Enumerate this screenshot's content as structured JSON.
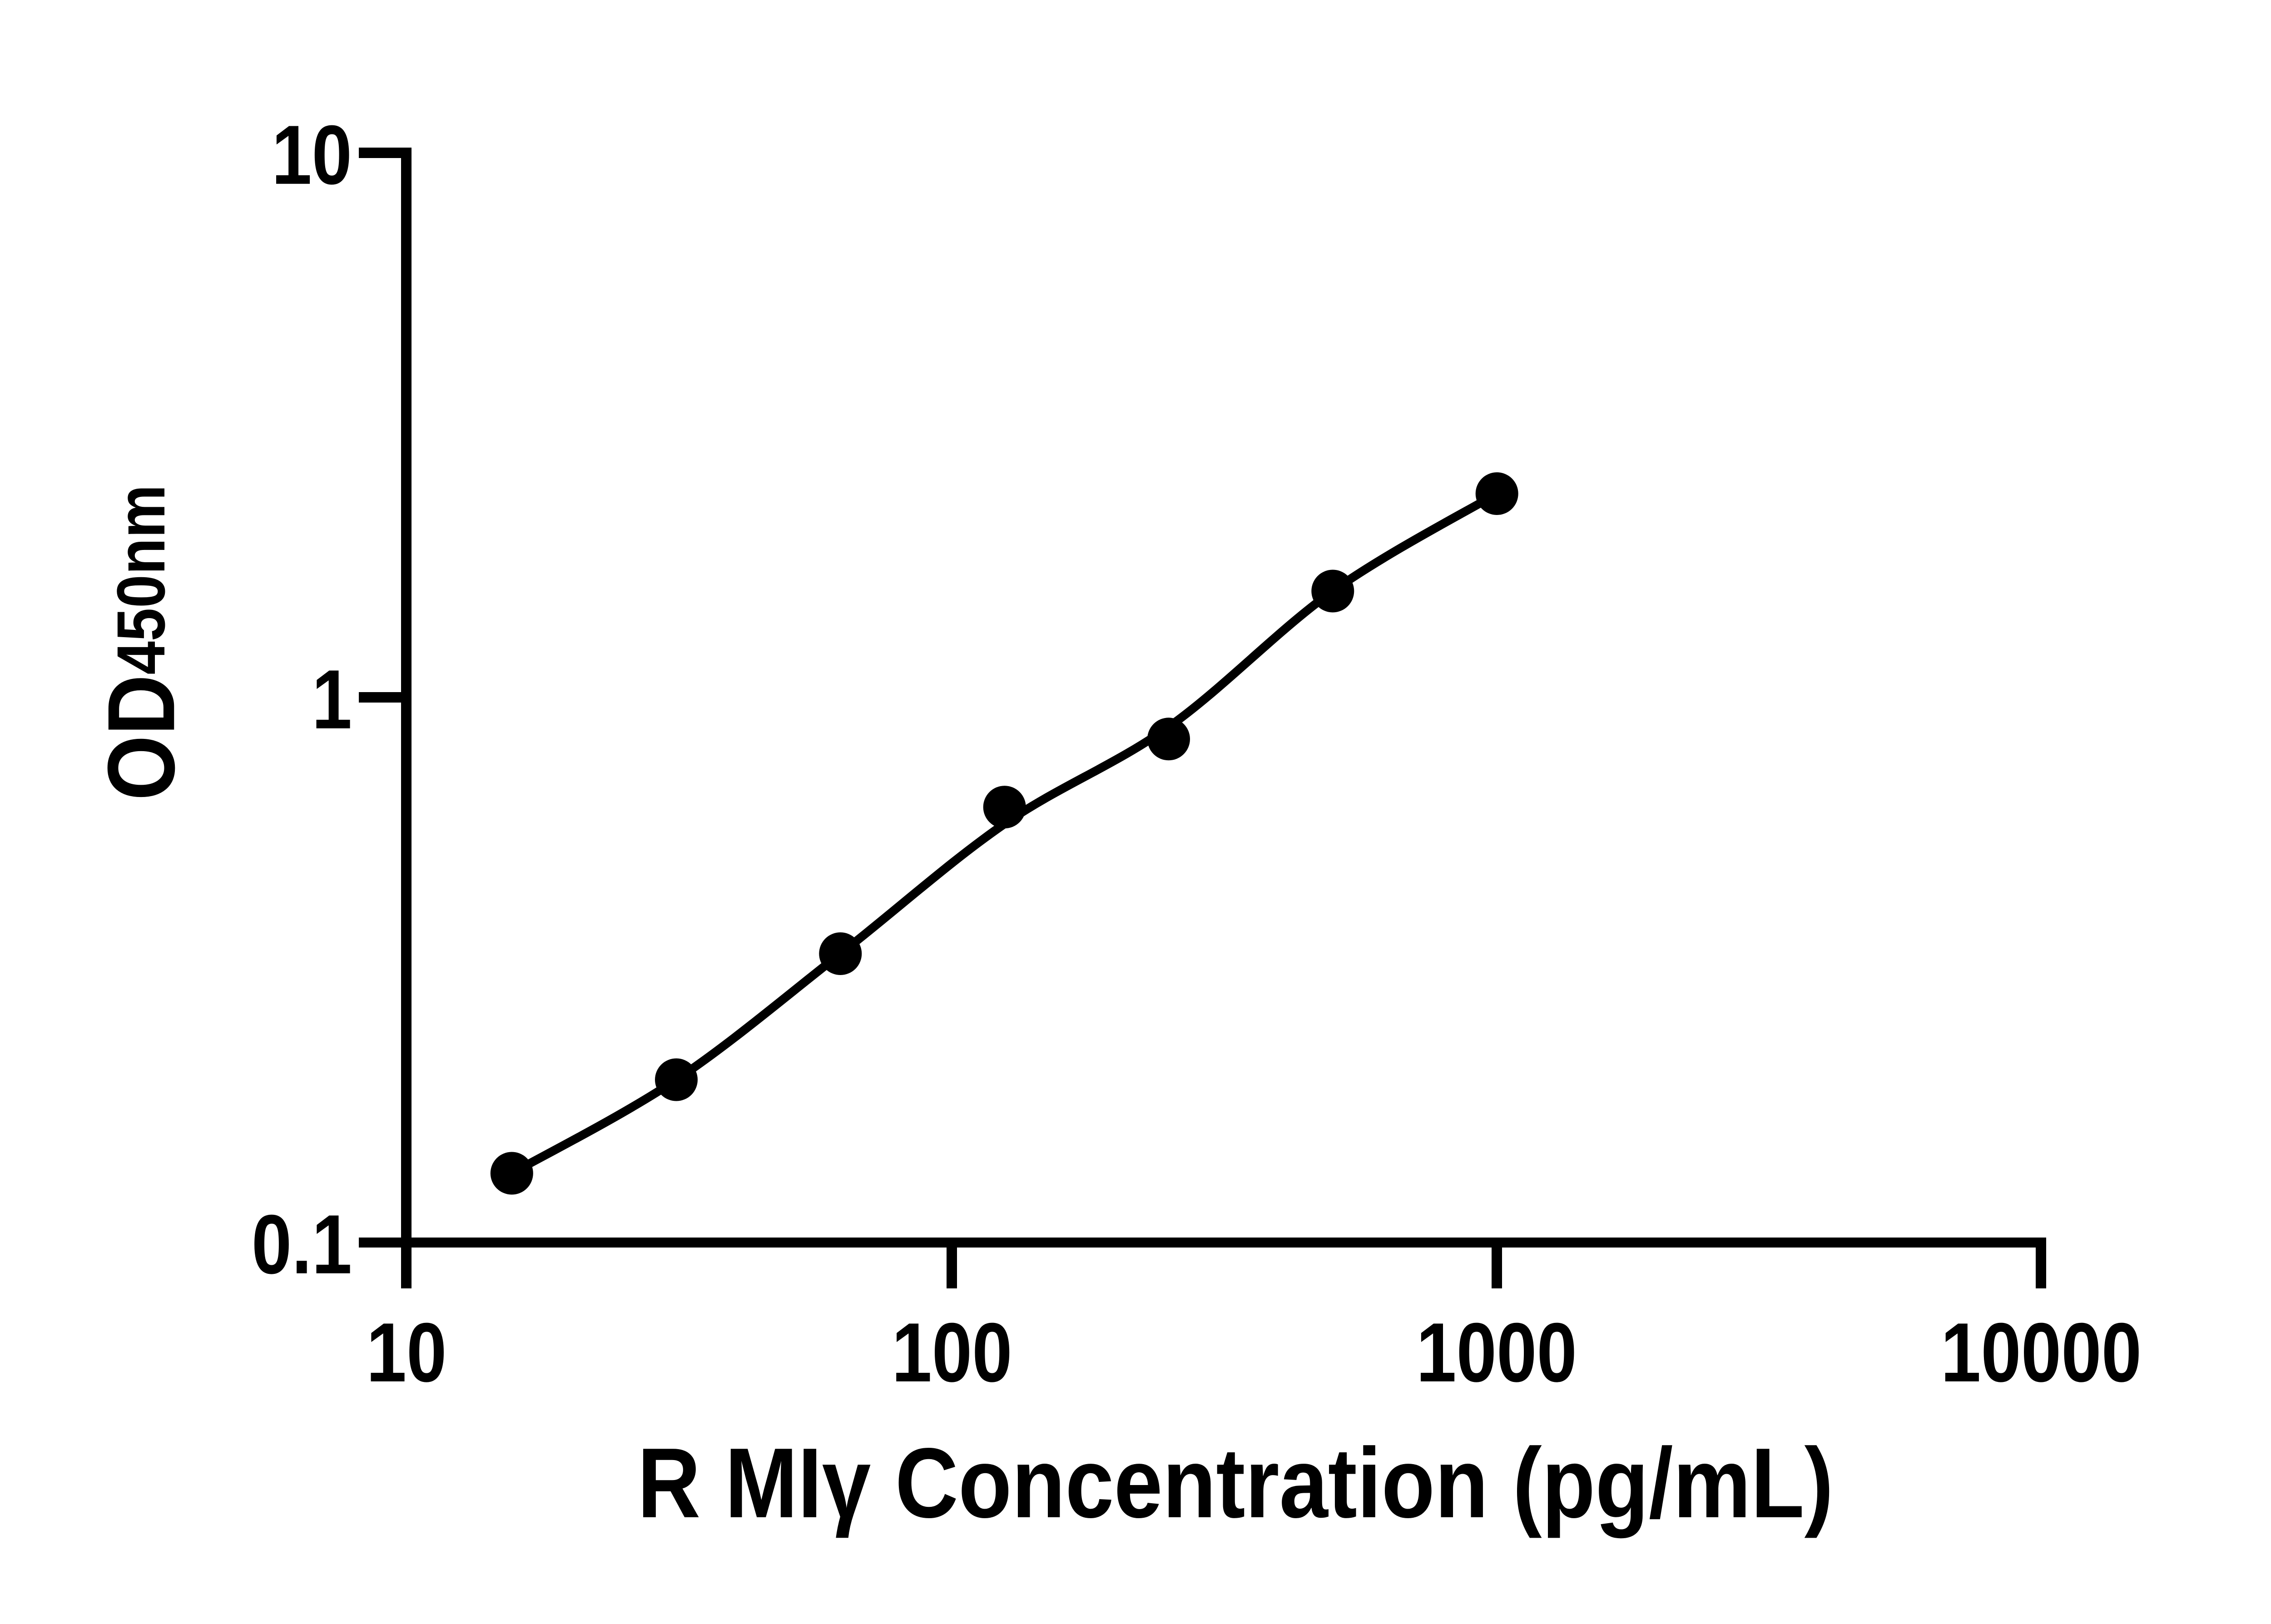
{
  "figure": {
    "background_color": "#ffffff",
    "foreground_color": "#000000"
  },
  "chart_data": {
    "type": "scatter",
    "title": "",
    "xlabel": "R MIγ Concentration (pg/mL)",
    "ylabel": "OD450nm",
    "ylabel_main": "OD",
    "ylabel_sub": "450nm",
    "x_scale": "log",
    "y_scale": "log",
    "xlim": [
      10,
      10000
    ],
    "ylim": [
      0.1,
      10
    ],
    "x_ticks": [
      "10",
      "100",
      "1000",
      "10000"
    ],
    "x_tick_values": [
      10,
      100,
      1000,
      10000
    ],
    "y_ticks": [
      "10",
      "1",
      "0.1"
    ],
    "y_tick_values": [
      10,
      1,
      0.1
    ],
    "grid": false,
    "legend": false,
    "marker_color": "#000000",
    "line_color": "#000000",
    "series": [
      {
        "name": "standard-curve-points",
        "type": "scatter",
        "x": [
          15.6,
          31.25,
          62.5,
          125,
          250,
          500,
          1000
        ],
        "y": [
          0.134,
          0.199,
          0.339,
          0.63,
          0.84,
          1.57,
          2.37
        ]
      },
      {
        "name": "fitted-curve",
        "type": "line",
        "x": [
          15.6,
          31.25,
          62.5,
          125,
          250,
          500,
          1000
        ],
        "y": [
          0.134,
          0.199,
          0.339,
          0.587,
          0.884,
          1.57,
          2.37
        ]
      }
    ]
  }
}
